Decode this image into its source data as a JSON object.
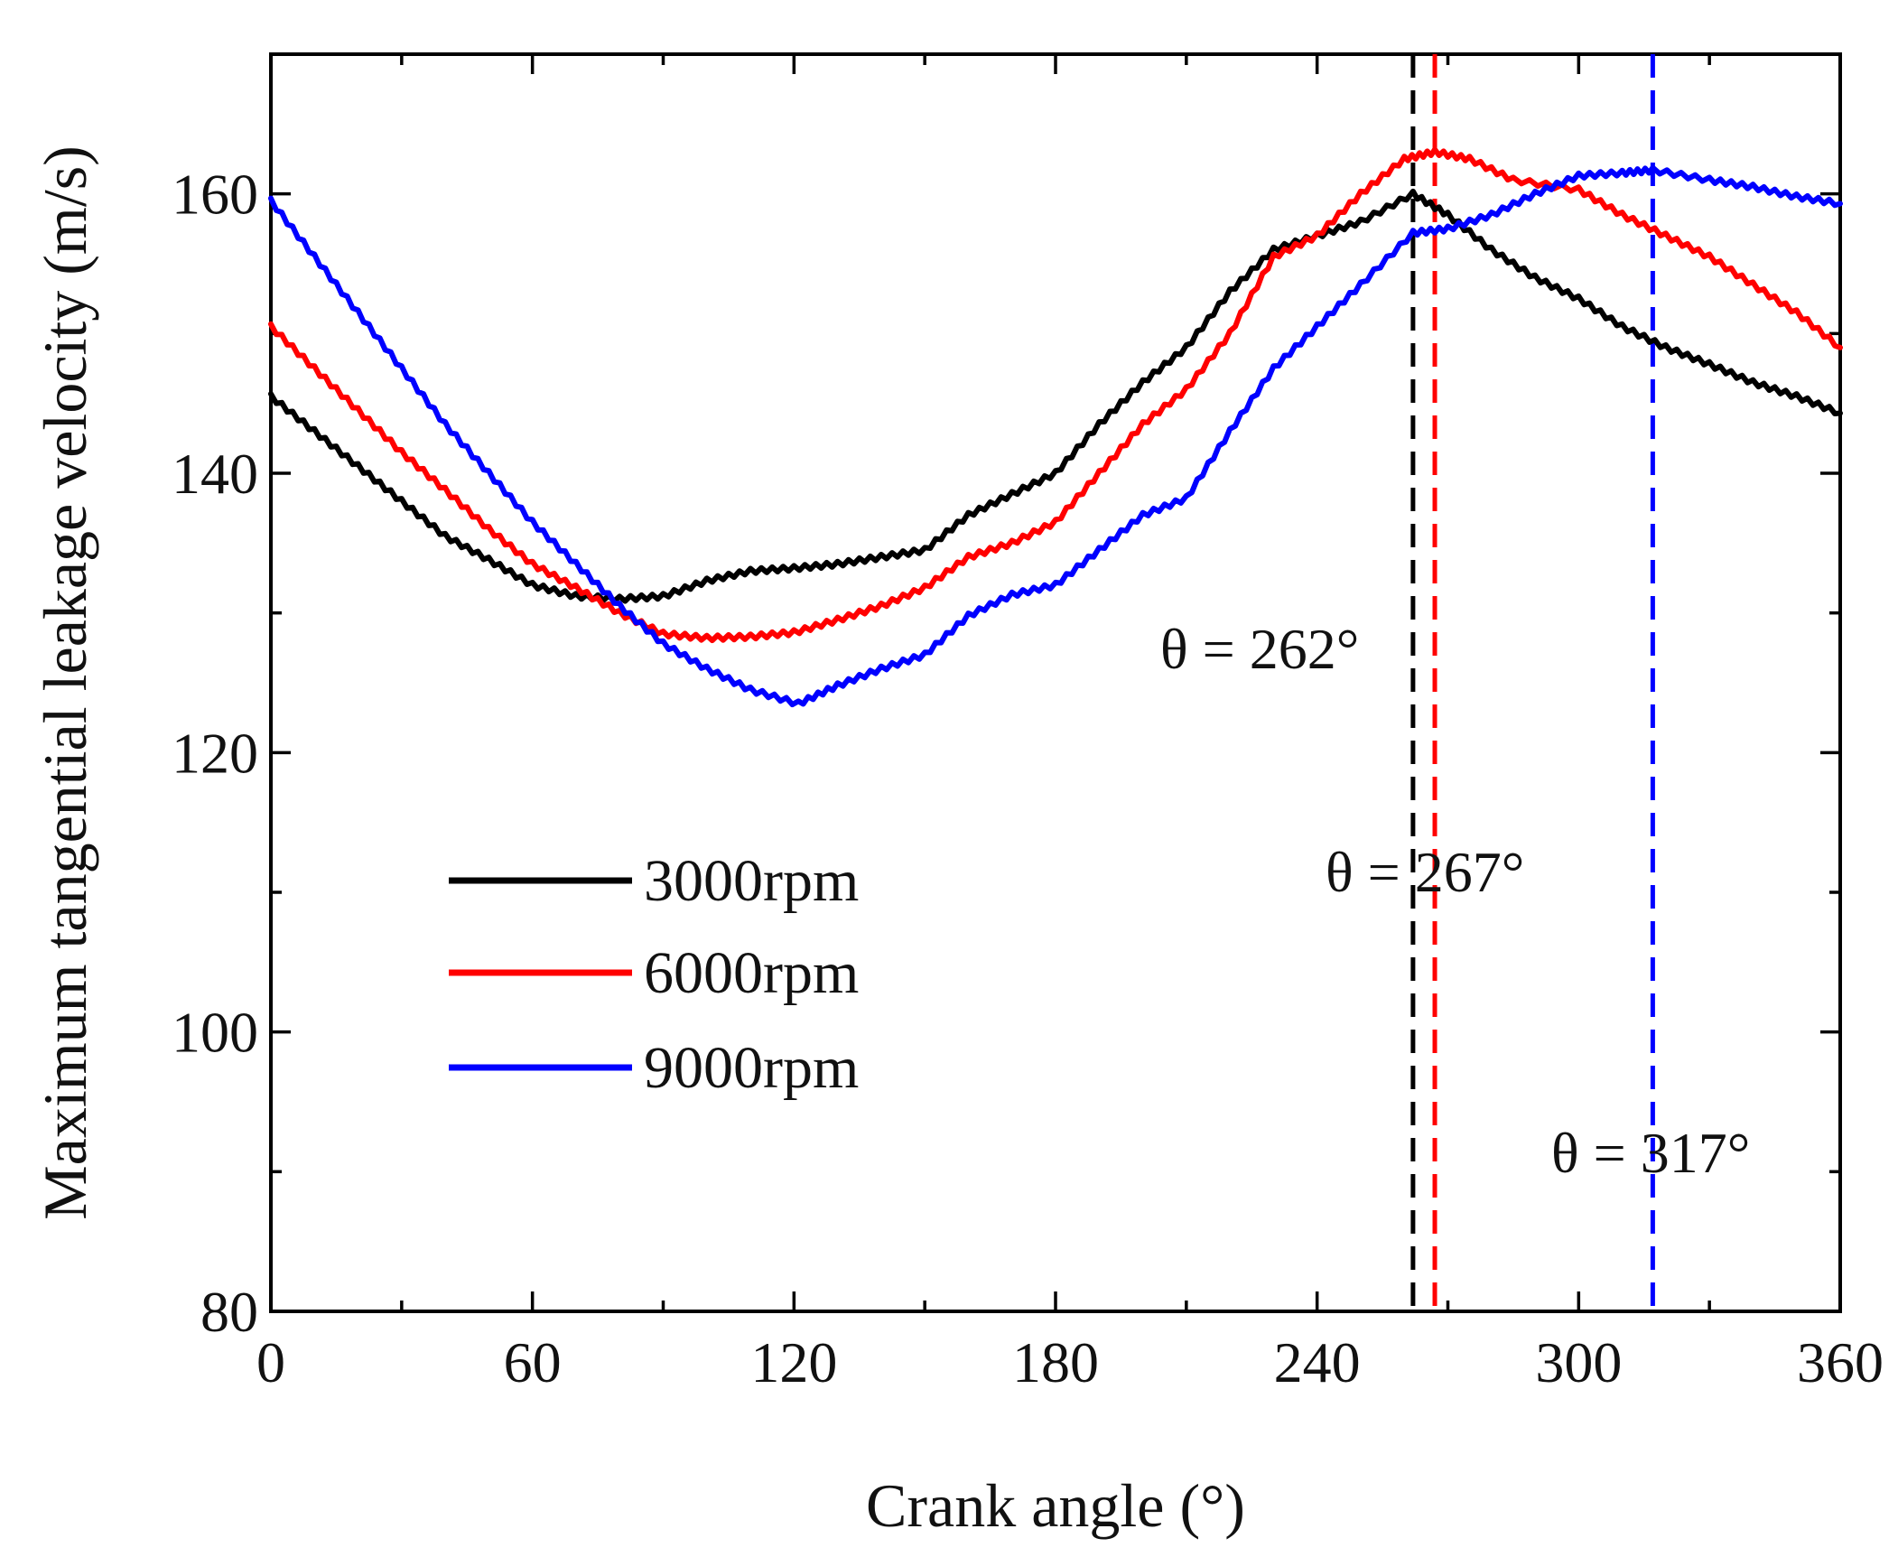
{
  "chart_data": {
    "type": "line",
    "title": "",
    "xlabel": "Crank angle (°)",
    "ylabel": "Maximum tangential leakage velocity (m/s)",
    "xlim": [
      0,
      360
    ],
    "ylim": [
      80,
      170
    ],
    "xticks": [
      0,
      60,
      120,
      180,
      240,
      300,
      360
    ],
    "yticks": [
      80,
      100,
      120,
      140,
      160
    ],
    "grid": false,
    "legend_position": "center-left",
    "series": [
      {
        "name": "3000rpm",
        "color": "#000000",
        "x": [
          0,
          10,
          20,
          30,
          40,
          50,
          60,
          70,
          80,
          90,
          100,
          110,
          120,
          130,
          140,
          150,
          160,
          170,
          180,
          190,
          200,
          210,
          220,
          230,
          240,
          250,
          262,
          270,
          280,
          290,
          300,
          310,
          320,
          330,
          340,
          350,
          360
        ],
        "y": [
          145.5,
          143,
          140.5,
          138,
          135.5,
          133.8,
          132,
          131.2,
          131,
          131.2,
          132.3,
          133,
          133.2,
          133.5,
          134,
          134.5,
          137,
          138.5,
          140,
          143.5,
          146.5,
          149,
          153,
          156,
          157,
          158,
          160,
          158.5,
          156,
          154,
          152.5,
          150.5,
          149,
          147.8,
          146.5,
          145.5,
          144.3
        ]
      },
      {
        "name": "6000rpm",
        "color": "#ff0000",
        "x": [
          0,
          10,
          20,
          30,
          40,
          50,
          60,
          70,
          80,
          90,
          100,
          110,
          120,
          130,
          140,
          150,
          160,
          170,
          180,
          190,
          200,
          210,
          220,
          230,
          240,
          250,
          260,
          267,
          275,
          285,
          300,
          310,
          320,
          330,
          340,
          350,
          360
        ],
        "y": [
          150.5,
          147.5,
          144.5,
          141.5,
          138.8,
          136,
          133.5,
          131.8,
          130,
          128.5,
          128.2,
          128.3,
          128.6,
          129.5,
          130.5,
          131.8,
          134,
          135,
          136.5,
          140,
          143.5,
          146,
          150,
          155.5,
          157,
          160,
          162.5,
          163,
          162.5,
          161,
          160.3,
          158.5,
          157,
          155.5,
          153.5,
          151.5,
          149
        ]
      },
      {
        "name": "9000rpm",
        "color": "#0000ff",
        "x": [
          0,
          10,
          20,
          30,
          40,
          50,
          60,
          70,
          80,
          90,
          100,
          110,
          121,
          130,
          140,
          150,
          160,
          170,
          180,
          190,
          200,
          210,
          220,
          230,
          240,
          250,
          262,
          270,
          280,
          290,
          300,
          310,
          317,
          330,
          340,
          350,
          360
        ],
        "y": [
          159.5,
          155.5,
          151.5,
          147.5,
          143.5,
          140,
          136.5,
          133.5,
          130.5,
          127.8,
          126,
          124.5,
          123.5,
          124.8,
          126,
          127,
          129.8,
          131.3,
          132,
          134.5,
          137,
          138.2,
          143,
          147.5,
          150.5,
          153.5,
          157.2,
          157.5,
          158.5,
          160,
          161.3,
          161.5,
          161.7,
          161,
          160.5,
          159.8,
          159.3
        ]
      }
    ],
    "annotations": [
      {
        "text": "θ = 262°",
        "x": 262,
        "color": "#000000"
      },
      {
        "text": "θ = 267°",
        "x": 267,
        "color": "#ff0000"
      },
      {
        "text": "θ = 317°",
        "x": 317,
        "color": "#0000ff"
      }
    ]
  }
}
